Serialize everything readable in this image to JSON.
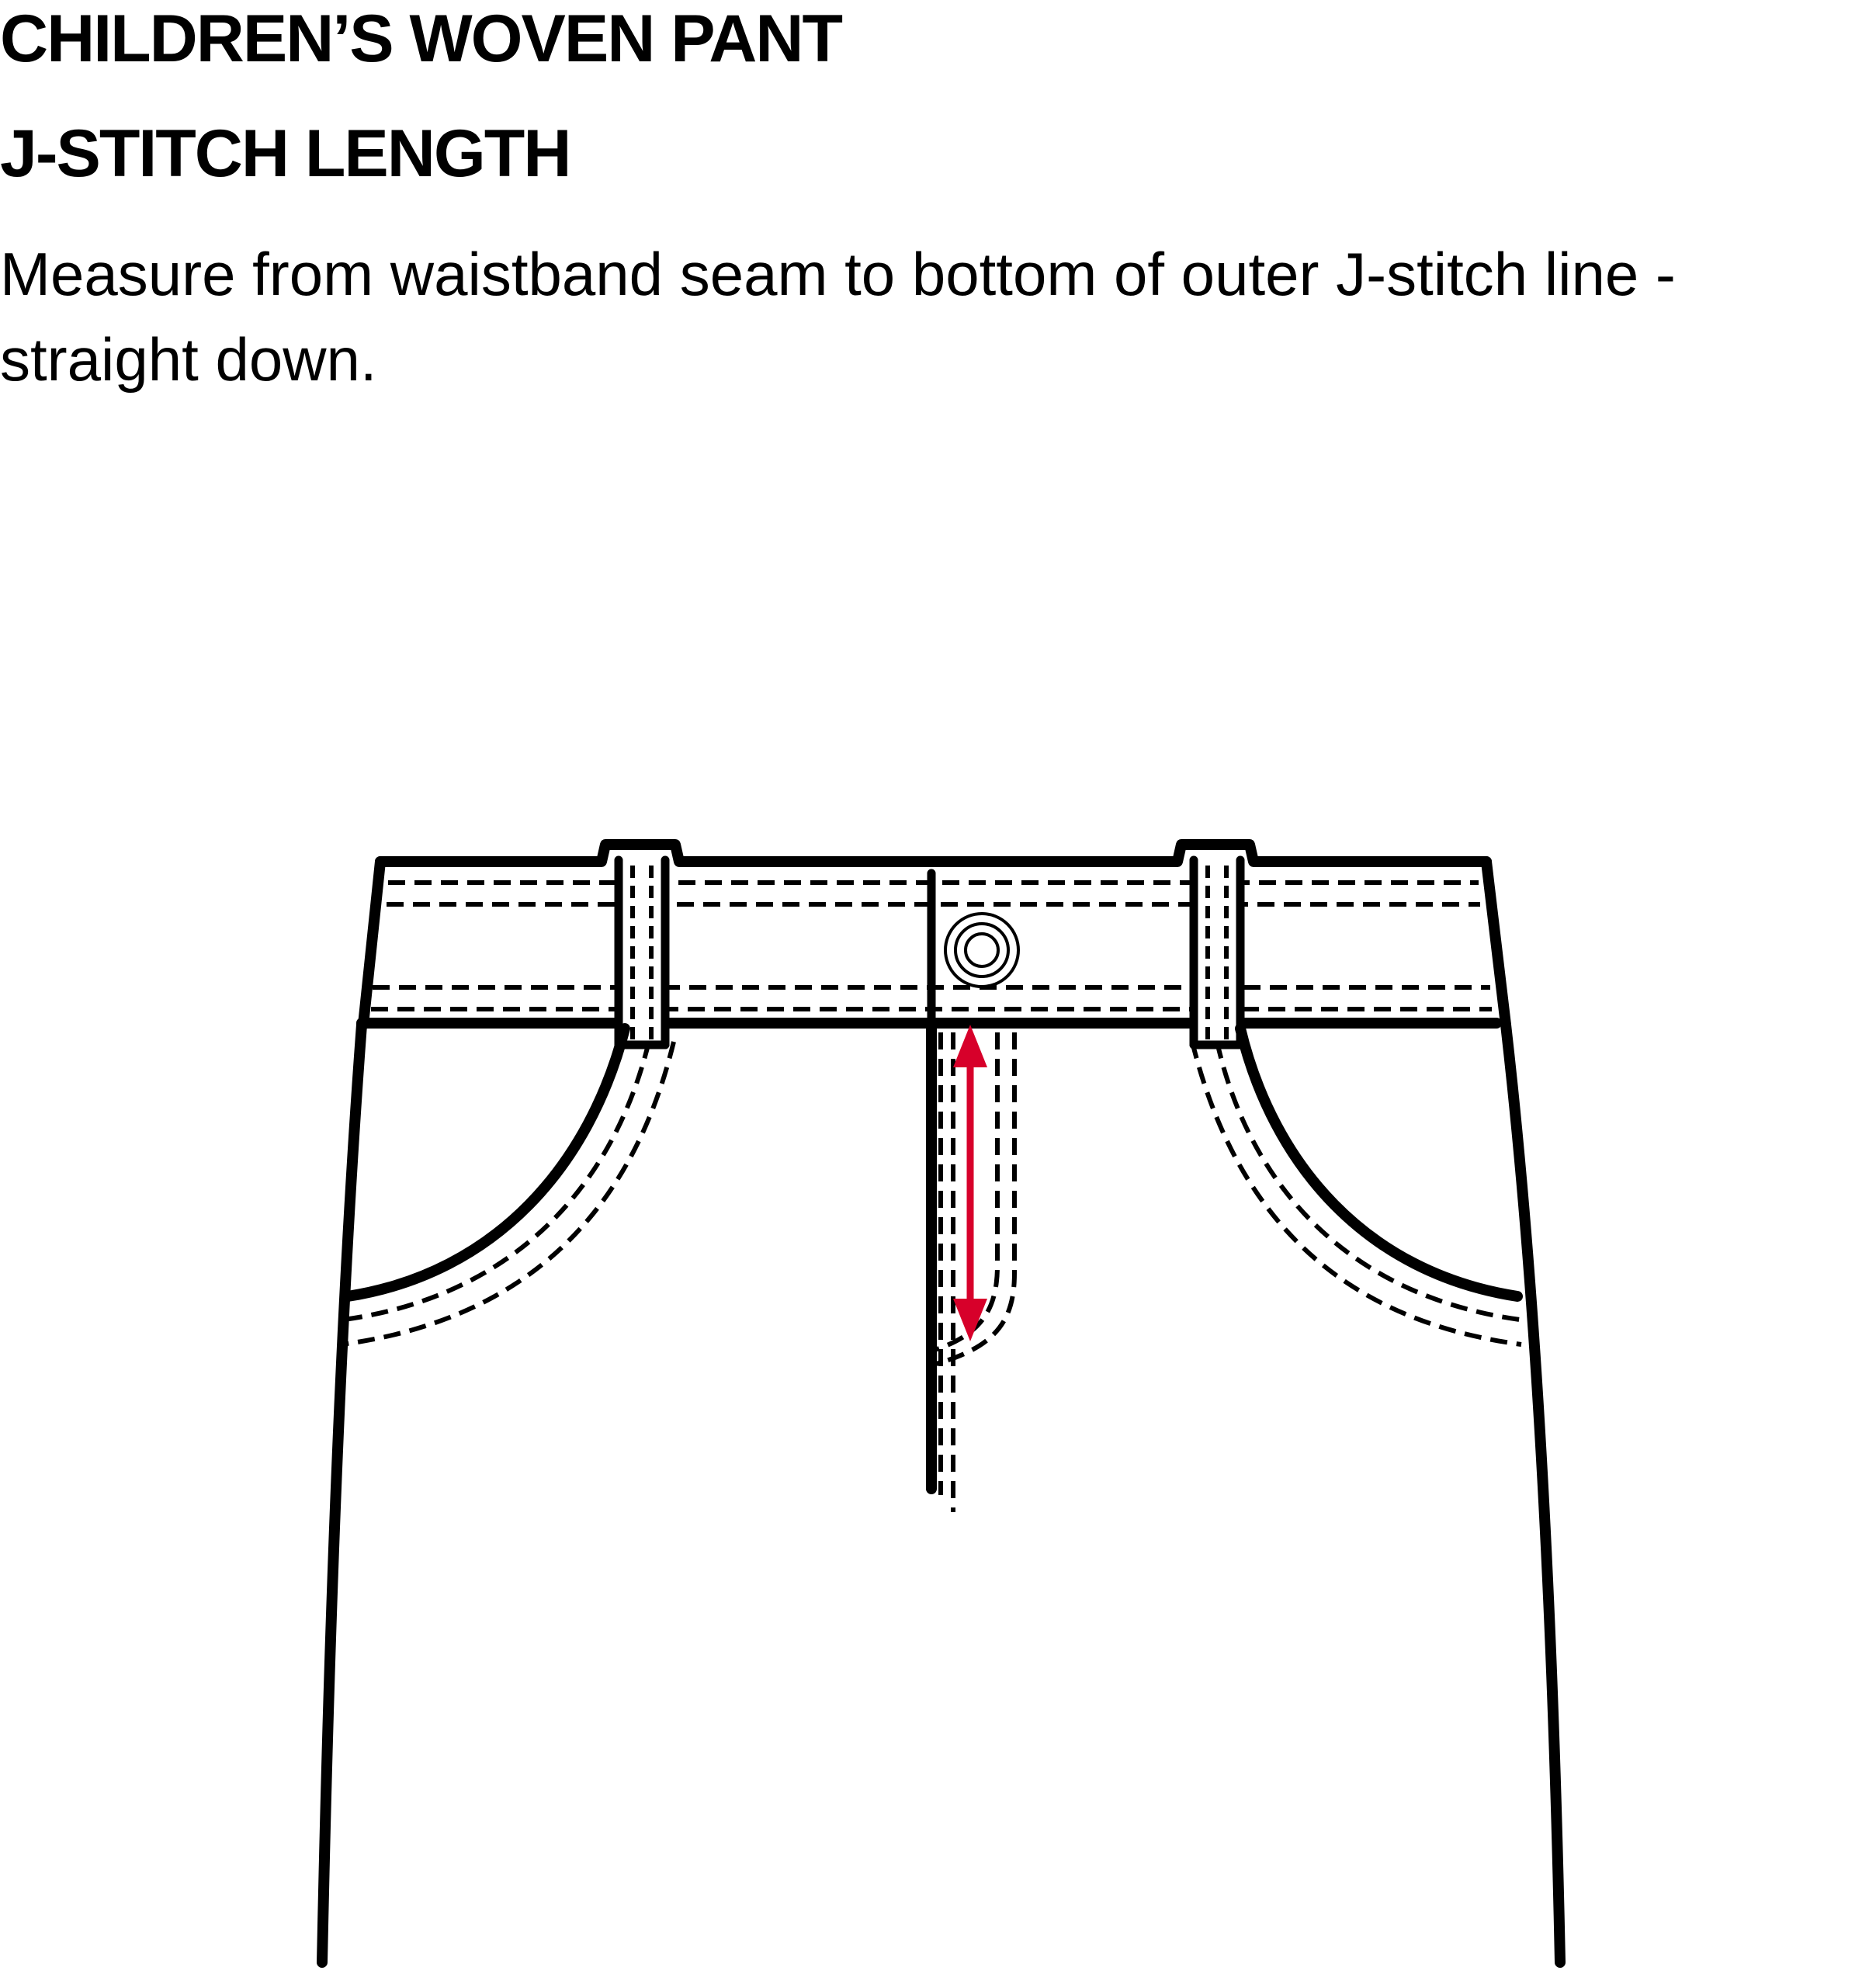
{
  "header": {
    "title": "CHILDREN’S WOVEN PANT",
    "subtitle": "J-STITCH LENGTH",
    "instruction_lines": [
      "Measure from waistband seam to bottom of outer J-stitch line -",
      "straight down."
    ]
  },
  "colors": {
    "line": "#000000",
    "measurement_arrow": "#d7002a",
    "background": "#ffffff"
  },
  "measurement": {
    "name": "J-stitch length",
    "from": "waistband seam",
    "to": "bottom of outer J-stitch line",
    "direction": "straight down"
  }
}
